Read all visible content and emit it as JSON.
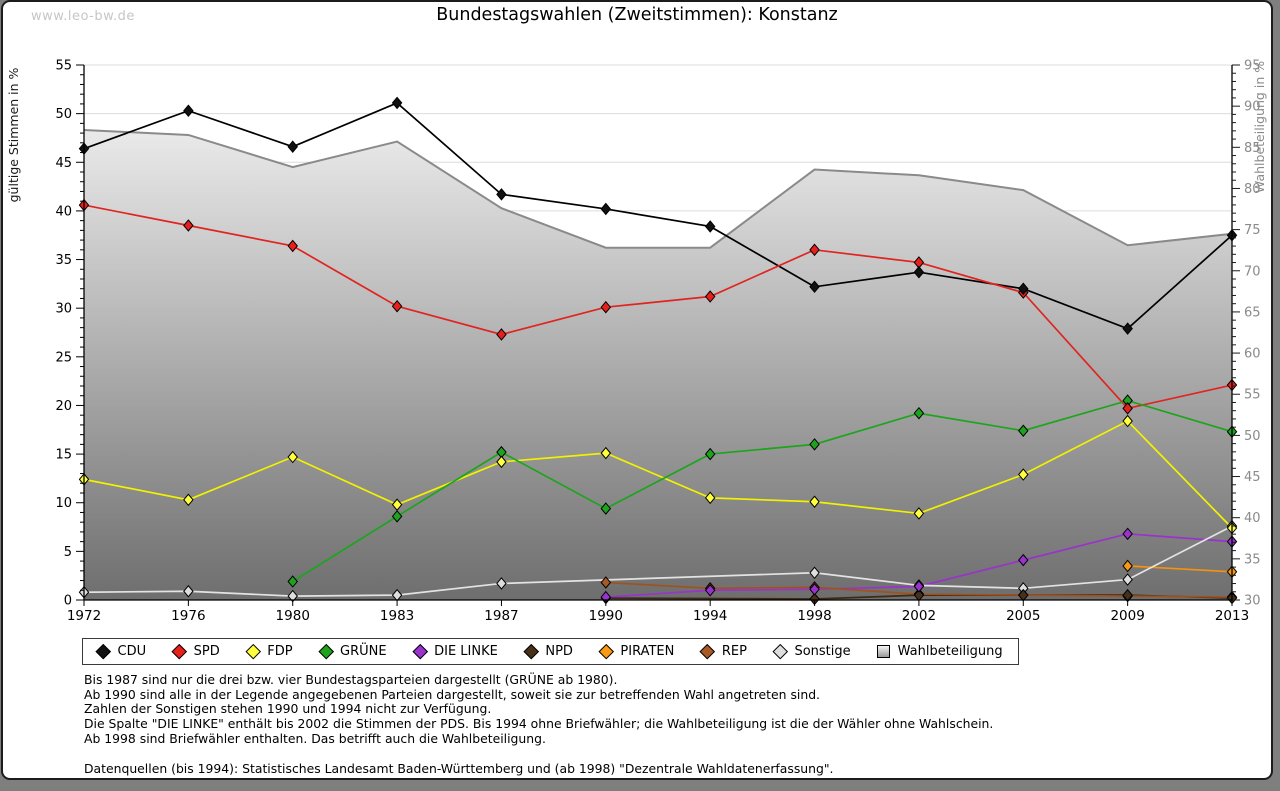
{
  "watermark": "www.leo-bw.de",
  "title": "Bundestagswahlen (Zweitstimmen): Konstanz",
  "chart_data": {
    "type": "line",
    "title": "Bundestagswahlen (Zweitstimmen): Konstanz",
    "categories": [
      "1972",
      "1976",
      "1980",
      "1983",
      "1987",
      "1990",
      "1994",
      "1998",
      "2002",
      "2005",
      "2009",
      "2013"
    ],
    "y_left": {
      "label": "gültige Stimmen in %",
      "min": 0,
      "max": 55,
      "major_step": 5,
      "minor_step": 1
    },
    "y_right": {
      "label": "Wahlbeteiligung in %",
      "min": 30,
      "max": 95,
      "major_step": 5,
      "minor_step": 1
    },
    "grid": true,
    "legend_position": "bottom",
    "series": [
      {
        "name": "CDU",
        "type": "line",
        "axis": "left",
        "color": "#000000",
        "marker_fill": "#111111",
        "values": [
          46.4,
          50.3,
          46.6,
          51.1,
          41.7,
          40.2,
          38.4,
          32.2,
          33.7,
          32.0,
          27.9,
          37.5
        ]
      },
      {
        "name": "SPD",
        "type": "line",
        "axis": "left",
        "color": "#e02420",
        "marker_fill": "#e8201c",
        "values": [
          40.6,
          38.5,
          36.4,
          30.2,
          27.3,
          30.1,
          31.2,
          36.0,
          34.7,
          31.6,
          19.7,
          22.1
        ]
      },
      {
        "name": "FDP",
        "type": "line",
        "axis": "left",
        "color": "#f2f200",
        "marker_fill": "#ffff3d",
        "values": [
          12.4,
          10.3,
          14.7,
          9.8,
          14.2,
          15.1,
          10.5,
          10.1,
          8.9,
          12.9,
          18.4,
          7.4
        ]
      },
      {
        "name": "GRÜNE",
        "type": "line",
        "axis": "left",
        "color": "#1ca51c",
        "marker_fill": "#1fa31f",
        "values": [
          null,
          null,
          1.9,
          8.6,
          15.2,
          9.4,
          15.0,
          16.0,
          19.2,
          17.4,
          20.5,
          17.3
        ]
      },
      {
        "name": "DIE LINKE",
        "type": "line",
        "axis": "left",
        "color": "#9933cc",
        "marker_fill": "#9933cc",
        "values": [
          null,
          null,
          null,
          null,
          null,
          0.3,
          1.0,
          1.1,
          1.4,
          4.1,
          6.8,
          6.0
        ]
      },
      {
        "name": "NPD",
        "type": "line",
        "axis": "left",
        "color": "#3f2a14",
        "marker_fill": "#46301a",
        "values": [
          null,
          null,
          null,
          null,
          null,
          0.2,
          null,
          0.1,
          0.5,
          0.5,
          0.5,
          0.2
        ]
      },
      {
        "name": "PIRATEN",
        "type": "line",
        "axis": "left",
        "color": "#f6920e",
        "marker_fill": "#fa9a14",
        "values": [
          null,
          null,
          null,
          null,
          null,
          null,
          null,
          null,
          null,
          null,
          3.5,
          2.9
        ]
      },
      {
        "name": "REP",
        "type": "line",
        "axis": "left",
        "color": "#a0521e",
        "marker_fill": "#a85a24",
        "values": [
          null,
          null,
          null,
          null,
          null,
          1.8,
          1.2,
          1.3,
          0.6,
          0.5,
          0.4,
          0.3
        ]
      },
      {
        "name": "Sonstige",
        "type": "line",
        "axis": "left",
        "color": "#e3e3e3",
        "marker_fill": "#dedede",
        "values": [
          0.8,
          0.9,
          0.4,
          0.5,
          1.7,
          null,
          null,
          2.8,
          1.5,
          1.2,
          2.1,
          7.6
        ]
      },
      {
        "name": "Wahlbeteiligung",
        "type": "area",
        "axis": "right",
        "color": "#8a8a8a",
        "marker_fill": null,
        "values": [
          87.1,
          86.5,
          82.6,
          85.7,
          77.6,
          72.8,
          72.8,
          82.3,
          81.6,
          79.8,
          73.1,
          74.5
        ]
      }
    ]
  },
  "notes": [
    "Bis 1987 sind nur die drei bzw. vier Bundestagsparteien dargestellt (GRÜNE ab 1980).",
    "Ab 1990 sind alle in der Legende angegebenen Parteien dargestellt, soweit sie zur betreffenden Wahl angetreten sind.",
    "Zahlen der Sonstigen stehen 1990 und 1994 nicht zur Verfügung.",
    "Die Spalte \"DIE LINKE\" enthält bis 2002 die Stimmen der PDS. Bis 1994 ohne Briefwähler; die Wahlbeteiligung ist die der Wähler ohne Wahlschein.",
    "Ab 1998 sind Briefwähler enthalten. Das betrifft auch die Wahlbeteiligung."
  ],
  "source": "Datenquellen (bis 1994): Statistisches Landesamt Baden-Württemberg und (ab 1998) \"Dezentrale Wahldatenerfassung\"."
}
